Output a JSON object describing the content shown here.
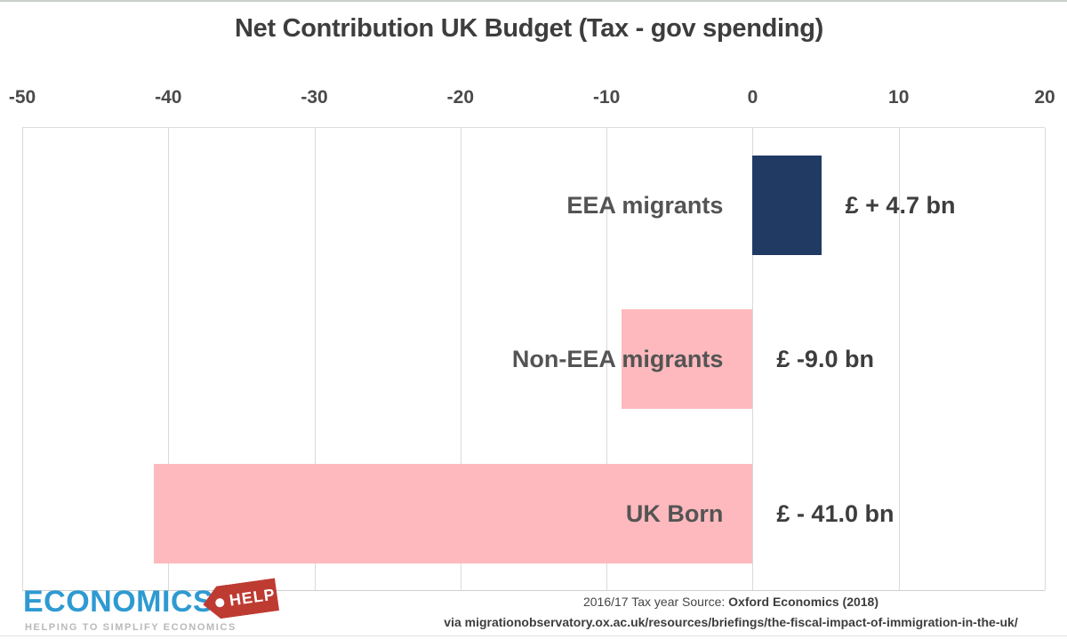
{
  "chart_data": {
    "type": "bar",
    "orientation": "horizontal",
    "title": "Net Contribution UK Budget (Tax - gov spending)",
    "categories": [
      "EEA migrants",
      "Non-EEA migrants",
      "UK Born"
    ],
    "values": [
      4.7,
      -9.0,
      -41.0
    ],
    "value_labels": [
      "£ + 4.7 bn",
      "£ -9.0 bn",
      "£ - 41.0 bn"
    ],
    "xlabel": "",
    "ylabel": "",
    "xlim": [
      -50,
      20
    ],
    "ticks": [
      -50,
      -40,
      -30,
      -20,
      -10,
      0,
      10,
      20
    ],
    "tick_labels": [
      "-50",
      "-40",
      "-30",
      "-20",
      "-10",
      "0",
      "10",
      "20"
    ],
    "grid": true,
    "legend": "none",
    "positive_color": "#213A64",
    "negative_color": "#FDB9BD",
    "gridline_color": "#D9D9D9",
    "unit": "£ bn"
  },
  "footer": {
    "source_prefix": "2016/17 Tax year Source: ",
    "source_bold": "Oxford Economics (2018)",
    "source_line2": "via migrationobservatory.ox.ac.uk/resources/briefings/the-fiscal-impact-of-immigration-in-the-uk/"
  },
  "logo": {
    "brand": "ECONOMICS",
    "tag": "HELP",
    "tagline": "HELPING TO SIMPLIFY ECONOMICS",
    "brand_color": "#2E9AD2",
    "tag_color": "#BE3B32"
  }
}
